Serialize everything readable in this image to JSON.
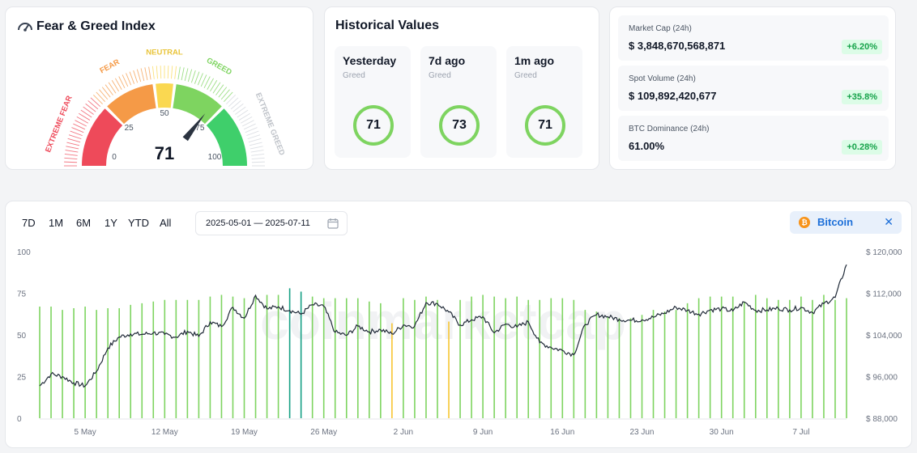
{
  "fear_greed": {
    "title": "Fear & Greed Index",
    "value": 71,
    "zones": [
      "EXTREME FEAR",
      "FEAR",
      "NEUTRAL",
      "GREED",
      "EXTREME GREED"
    ],
    "scale": [
      "0",
      "25",
      "50",
      "75",
      "100"
    ],
    "colors": {
      "extreme_fear": "#ee4a5a",
      "fear": "#f59a47",
      "neutral": "#fad851",
      "greed": "#7ed460",
      "extreme_greed": "#3fcf6b",
      "needle": "#2b3340"
    }
  },
  "historical": {
    "title": "Historical Values",
    "items": [
      {
        "label": "Yesterday",
        "status": "Greed",
        "value": 71
      },
      {
        "label": "7d ago",
        "status": "Greed",
        "value": 73
      },
      {
        "label": "1m ago",
        "status": "Greed",
        "value": 71
      }
    ]
  },
  "market": {
    "items": [
      {
        "label": "Market Cap (24h)",
        "value": "$ 3,848,670,568,871",
        "change": "+6.20%"
      },
      {
        "label": "Spot Volume (24h)",
        "value": "$ 109,892,420,677",
        "change": "+35.8%"
      },
      {
        "label": "BTC Dominance (24h)",
        "value": "61.00%",
        "change": "+0.28%"
      }
    ]
  },
  "controls": {
    "ranges": [
      "7D",
      "1M",
      "6M",
      "1Y",
      "YTD",
      "All"
    ],
    "date_range": "2025-05-01  —  2025-07-11",
    "coin": "Bitcoin",
    "coin_icon": "bitcoin-icon",
    "close_glyph": "✕"
  },
  "chart_data": {
    "type": "bar",
    "x_ticks": [
      "5 May",
      "12 May",
      "19 May",
      "26 May",
      "2 Jun",
      "9 Jun",
      "16 Jun",
      "23 Jun",
      "30 Jun",
      "7 Jul"
    ],
    "y_left_ticks": [
      "0",
      "25",
      "50",
      "75",
      "100"
    ],
    "y_right_ticks": [
      "$ 88,000",
      "$ 96,000",
      "$ 104,000",
      "$ 112,000",
      "$ 120,000"
    ],
    "ylim_left": [
      0,
      100
    ],
    "ylim_right": [
      88000,
      120000
    ],
    "x_start": "2025-05-01",
    "x_end": "2025-07-11",
    "series": [
      {
        "name": "Fear & Greed Index",
        "kind": "bar",
        "values": [
          67,
          67,
          65,
          66,
          67,
          65,
          66,
          66,
          68,
          69,
          70,
          71,
          71,
          71,
          71,
          73,
          74,
          73,
          72,
          73,
          74,
          74,
          78,
          76,
          73,
          72,
          72,
          72,
          72,
          70,
          69,
          57,
          72,
          71,
          73,
          71,
          58,
          71,
          73,
          74,
          73,
          72,
          73,
          71,
          71,
          72,
          72,
          71,
          65,
          64,
          61,
          60,
          60,
          62,
          65,
          64,
          65,
          69,
          72,
          73,
          73,
          73,
          70,
          74,
          72,
          71,
          71,
          73,
          71,
          74,
          71,
          72
        ]
      },
      {
        "name": "Bitcoin Price",
        "kind": "line",
        "values": [
          94200,
          96500,
          96000,
          94800,
          94200,
          97000,
          101500,
          103600,
          104200,
          104100,
          104400,
          104100,
          103600,
          104700,
          103700,
          106500,
          105600,
          109300,
          107200,
          111600,
          109000,
          109400,
          108700,
          108000,
          109800,
          109500,
          104500,
          103900,
          105700,
          104600,
          105000,
          104200,
          105900,
          105700,
          110200,
          110000,
          108400,
          105900,
          106900,
          107500,
          104400,
          106100,
          105500,
          106500,
          102500,
          101600,
          101000,
          100200,
          106000,
          107900,
          107500,
          107000,
          106800,
          106900,
          107400,
          108200,
          109300,
          108700,
          108000,
          108800,
          109000,
          108600,
          110300,
          108700,
          108800,
          109100,
          108800,
          109300,
          108300,
          110000,
          111200,
          117500
        ]
      }
    ]
  }
}
